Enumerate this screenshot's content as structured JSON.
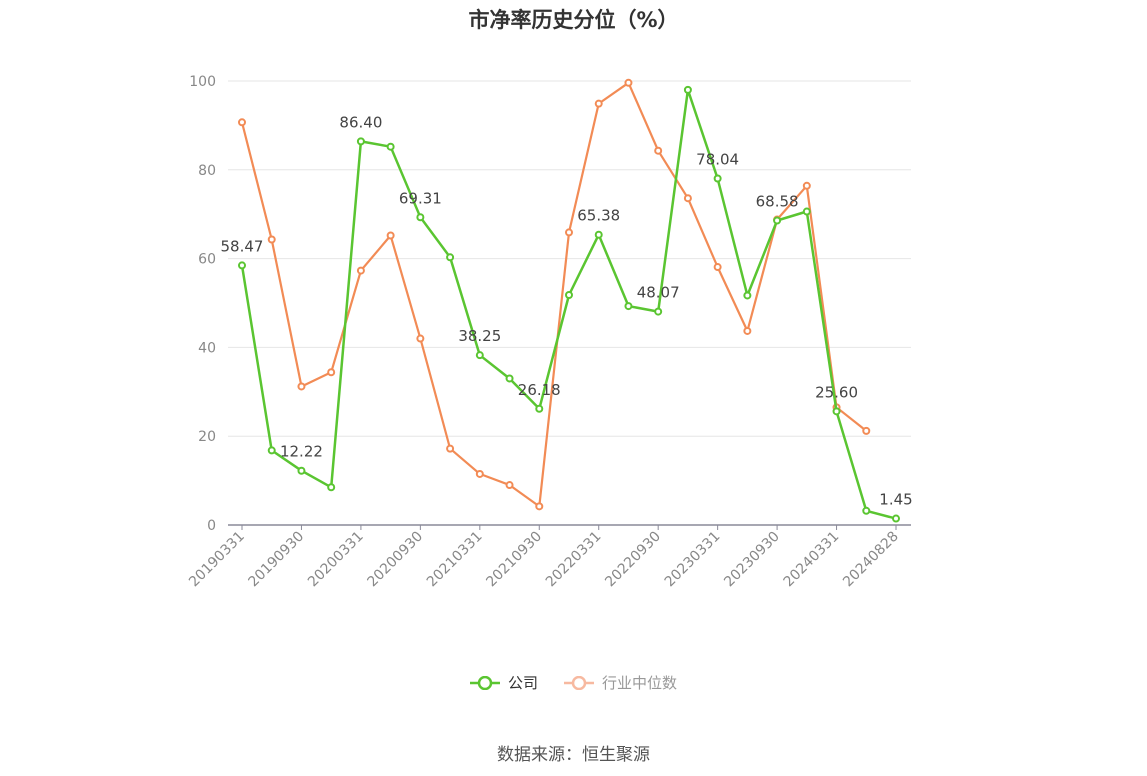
{
  "title": "市净率历史分位（%）",
  "source_text": "数据来源：恒生聚源",
  "colors": {
    "company": "#5ac531",
    "industry": "#f28b55",
    "industry_legend": "#f7b9a0",
    "grid": "#e6e6e6",
    "axis": "#8a8a99"
  },
  "legend": [
    {
      "label": "公司",
      "icon": "line-circle-icon"
    },
    {
      "label": "行业中位数",
      "icon": "line-circle-icon"
    }
  ],
  "chart_data": {
    "type": "line",
    "title": "市净率历史分位（%）",
    "xlabel": "",
    "ylabel": "",
    "ylim": [
      0,
      100
    ],
    "y_ticks": [
      0,
      20,
      40,
      60,
      80,
      100
    ],
    "x_tick_labels": [
      "20190331",
      "20190930",
      "20200331",
      "20200930",
      "20210331",
      "20210930",
      "20220331",
      "20220930",
      "20230331",
      "20230930",
      "20240331",
      "20240828"
    ],
    "x": [
      "20190331",
      "20190630",
      "20190930",
      "20191231",
      "20200331",
      "20200630",
      "20200930",
      "20201231",
      "20210331",
      "20210630",
      "20210930",
      "20211231",
      "20220331",
      "20220630",
      "20220930",
      "20221231",
      "20230331",
      "20230630",
      "20230930",
      "20231231",
      "20240331",
      "20240630",
      "20240828"
    ],
    "grid": true,
    "legend_position": "bottom",
    "series": [
      {
        "name": "公司",
        "values": [
          58.47,
          16.8,
          12.22,
          8.5,
          86.4,
          85.2,
          69.31,
          60.3,
          38.25,
          33.0,
          26.18,
          51.8,
          65.38,
          49.3,
          48.07,
          98.0,
          78.04,
          51.7,
          68.58,
          70.6,
          25.6,
          3.2,
          1.45
        ],
        "labels": [
          "58.47",
          "",
          "12.22",
          "",
          "86.40",
          "",
          "69.31",
          "",
          "38.25",
          "",
          "26.18",
          "",
          "65.38",
          "",
          "48.07",
          "",
          "78.04",
          "",
          "68.58",
          "",
          "25.60",
          "",
          "1.45"
        ]
      },
      {
        "name": "行业中位数",
        "values": [
          90.7,
          64.3,
          31.2,
          34.4,
          57.3,
          65.2,
          42.0,
          17.2,
          11.5,
          9.0,
          4.2,
          65.9,
          94.9,
          99.6,
          84.3,
          73.6,
          58.1,
          43.7,
          68.8,
          76.4,
          26.5,
          21.2,
          null
        ],
        "labels": []
      }
    ]
  }
}
